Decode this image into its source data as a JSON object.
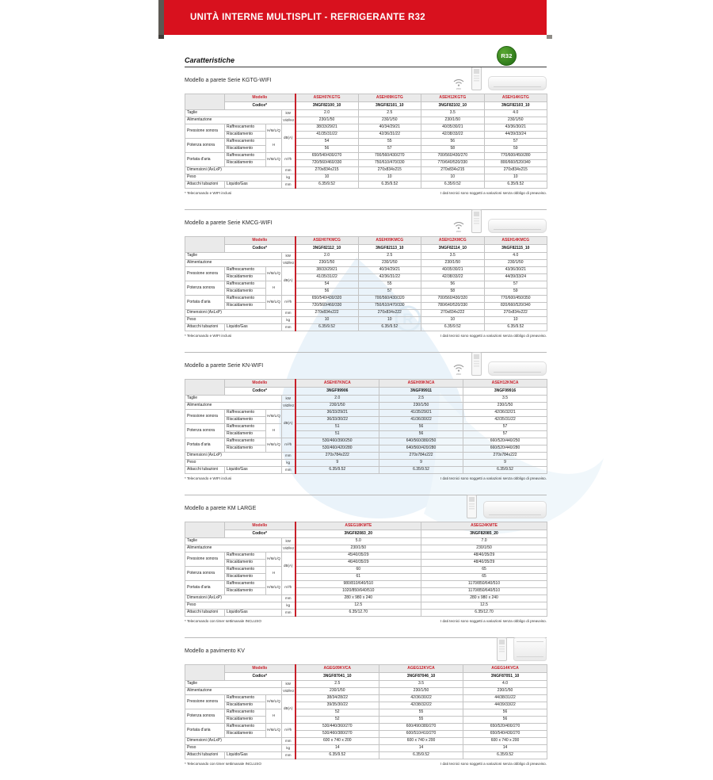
{
  "banner": {
    "title": "UNITÀ INTERNE MULTISPLIT - REFRIGERANTE R32"
  },
  "page": {
    "heading": "Caratteristiche",
    "r32_badge": "R32"
  },
  "labels": {
    "modello": "Modello",
    "codice": "Codice*",
    "taglie": "Taglie",
    "alimentazione": "Alimentazione",
    "pressione": "Pressione sonora",
    "potenza": "Potenza sonora",
    "portata": "Portata d'aria",
    "dimensioni": "Dimensioni (AxLxP)",
    "peso": "Peso",
    "attacchi": "Attacchi tubazioni",
    "raffrescamento": "Raffrescamento",
    "riscaldamento": "Riscaldamento",
    "liquido_gas": "Liquido/Gas",
    "hmlq": "H/M/L/Q",
    "h": "H",
    "unit_kw": "kW",
    "unit_v": "V/Ø/Hz",
    "unit_db": "dB(A)",
    "unit_m3h": "m³/h",
    "unit_mm": "mm",
    "unit_kg": "kg",
    "wifi": "WIFI",
    "disclaimer": "I dati tecnici sono soggetti a variazioni senza obbligo di preavviso."
  },
  "tables": [
    {
      "title": "Modello a parete Serie KGTG-WIFI",
      "icons": [
        "wifi",
        "remote",
        "wall"
      ],
      "models": [
        "ASEH07KGTG",
        "ASEH09KGTG",
        "ASEH12KGTG",
        "ASEH14KGTG"
      ],
      "codes": [
        "3NGF82100_10",
        "3NGF82101_10",
        "3NGF82102_10",
        "3NGF82103_10"
      ],
      "taglie": [
        "2.0",
        "2.5",
        "3.5",
        "4.0"
      ],
      "alimentazione": [
        "230/1/50",
        "230/1/50",
        "230/1/50",
        "230/1/50"
      ],
      "pressione_raffrescamento": [
        "38/33/29/21",
        "40/34/29/21",
        "40/35/30/21",
        "43/36/30/21"
      ],
      "pressione_riscaldamento": [
        "41/35/31/22",
        "42/36/31/22",
        "42/38/33/22",
        "44/39/33/24"
      ],
      "potenza_raffrescamento": [
        "54",
        "55",
        "56",
        "57"
      ],
      "potenza_riscaldamento": [
        "56",
        "57",
        "58",
        "59"
      ],
      "portata_raffrescamento": [
        "650/540/430/270",
        "700/560/430/270",
        "700/560/430/270",
        "770/600/450/280"
      ],
      "portata_riscaldamento": [
        "720/560/460/330",
        "750/610/470/330",
        "770/640/520/330",
        "800/660/520/340"
      ],
      "dimensioni": [
        "270x834x215",
        "270x834x215",
        "270x834x215",
        "270x834x215"
      ],
      "peso": [
        "10",
        "10",
        "10",
        "10"
      ],
      "attacchi": [
        "6.35/9.52",
        "6.35/9.52",
        "6.35/9.52",
        "6.35/9.52"
      ],
      "note_left": "* Telecomando e WIFI inclusi"
    },
    {
      "title": "Modello a parete Serie KMCG-WIFI",
      "icons": [
        "wifi",
        "remote",
        "wall"
      ],
      "models": [
        "ASEH07KMCG",
        "ASEH09KMCG",
        "ASEH12KMCG",
        "ASEH14KMCG"
      ],
      "codes": [
        "3NGF82112_10",
        "3NGF82113_10",
        "3NGF82114_10",
        "3NGF82115_10"
      ],
      "taglie": [
        "2.0",
        "2.5",
        "3.5",
        "4.0"
      ],
      "alimentazione": [
        "230/1/50",
        "230/1/50",
        "230/1/50",
        "230/1/50"
      ],
      "pressione_raffrescamento": [
        "38/33/29/21",
        "40/34/29/21",
        "40/35/30/21",
        "43/36/30/21"
      ],
      "pressione_riscaldamento": [
        "41/35/31/22",
        "42/36/31/22",
        "42/38/33/22",
        "44/39/33/24"
      ],
      "potenza_raffrescamento": [
        "54",
        "55",
        "56",
        "57"
      ],
      "potenza_riscaldamento": [
        "56",
        "57",
        "58",
        "59"
      ],
      "portata_raffrescamento": [
        "650/540/430/320",
        "700/560/430/320",
        "700/560/430/320",
        "770/600/450/350"
      ],
      "portata_riscaldamento": [
        "720/560/460/330",
        "750/610/470/330",
        "780/640/520/330",
        "820/660/520/340"
      ],
      "dimensioni": [
        "270x834x222",
        "270x834x222",
        "270x834x222",
        "270x834x222"
      ],
      "peso": [
        "10",
        "10",
        "10",
        "10"
      ],
      "attacchi": [
        "6.35/9.52",
        "6.35/9.52",
        "6.35/9.52",
        "6.35/9.52"
      ],
      "note_left": "* Telecomando e WIFI inclusi"
    },
    {
      "title": "Modello a parete Serie KN-WIFI",
      "icons": [
        "wifi",
        "remote",
        "wall"
      ],
      "models": [
        "ASEH07KNCA",
        "ASEH09KNCA",
        "ASEH12KNCA"
      ],
      "codes": [
        "3NGF99906",
        "3NGF99911",
        "3NGF99916"
      ],
      "taglie": [
        "2.0",
        "2.5",
        "3.5"
      ],
      "alimentazione": [
        "230/1/50",
        "230/1/50",
        "230/1/50"
      ],
      "pressione_raffrescamento": [
        "36/33/29/21",
        "41/35/29/21",
        "42/36/32/21"
      ],
      "pressione_riscaldamento": [
        "36/33/30/22",
        "41/36/30/22",
        "42/35/31/22"
      ],
      "potenza_raffrescamento": [
        "51",
        "56",
        "57"
      ],
      "potenza_riscaldamento": [
        "51",
        "56",
        "57"
      ],
      "portata_raffrescamento": [
        "530/460/390/250",
        "640/560/380/250",
        "660/520/440/250"
      ],
      "portata_riscaldamento": [
        "530/460/420/280",
        "640/560/420/280",
        "660/520/440/280"
      ],
      "dimensioni": [
        "270x784x222",
        "270x784x222",
        "270x784x222"
      ],
      "peso": [
        "9",
        "9",
        "9"
      ],
      "attacchi": [
        "6.35/9.52",
        "6.35/9.52",
        "6.35/9.52"
      ],
      "note_left": "* Telecomando e WIFI inclusi"
    },
    {
      "title": "Modello a parete KM LARGE",
      "icons": [
        "remote",
        "wall-lg"
      ],
      "models": [
        "ASEG18KMTE",
        "ASEG24KMTE"
      ],
      "codes": [
        "3NGF82083_20",
        "3NGF82085_20"
      ],
      "taglie": [
        "5.0",
        "7.0"
      ],
      "alimentazione": [
        "230/1/50",
        "230/1/50"
      ],
      "pressione_raffrescamento": [
        "45/40/35/29",
        "48/40/35/29"
      ],
      "pressione_riscaldamento": [
        "46/40/35/29",
        "48/40/35/29"
      ],
      "potenza_raffrescamento": [
        "60",
        "65"
      ],
      "potenza_riscaldamento": [
        "61",
        "65"
      ],
      "portata_raffrescamento": [
        "980/810/640/510",
        "1170/850/640/510"
      ],
      "portata_riscaldamento": [
        "1020/850/640/510",
        "1170/850/640/510"
      ],
      "dimensioni": [
        "280 x 980 x 240",
        "280 x 980 x 240"
      ],
      "peso": [
        "12.5",
        "12.5"
      ],
      "attacchi": [
        "6.35/12.70",
        "6.35/12.70"
      ],
      "note_left": "* Telecomando con timer settimanale INCLUSO"
    },
    {
      "title": "Modello a pavimento KV",
      "icons": [
        "remote",
        "floor"
      ],
      "models": [
        "AGEG09KVCA",
        "AGEG12KVCA",
        "AGEG14KVCA"
      ],
      "codes": [
        "3NGF87041_10",
        "3NGF87046_10",
        "3NGF87051_10"
      ],
      "taglie": [
        "2.5",
        "3.5",
        "4.0"
      ],
      "alimentazione": [
        "230/1/50",
        "230/1/50",
        "230/1/50"
      ],
      "pressione_raffrescamento": [
        "38/34/28/22",
        "42/36/30/22",
        "44/38/31/22"
      ],
      "pressione_riscaldamento": [
        "39/35/30/22",
        "42/38/32/22",
        "44/39/33/22"
      ],
      "potenza_raffrescamento": [
        "52",
        "55",
        "56"
      ],
      "potenza_riscaldamento": [
        "52",
        "55",
        "56"
      ],
      "portata_raffrescamento": [
        "530/440/360/270",
        "600/490/380/270",
        "650/520/400/270"
      ],
      "portata_riscaldamento": [
        "530/460/380/270",
        "600/510/410/270",
        "650/540/430/270"
      ],
      "dimensioni": [
        "600 x 740 x 200",
        "600 x 740 x 200",
        "600 x 740 x 200"
      ],
      "peso": [
        "14",
        "14",
        "14"
      ],
      "attacchi": [
        "6.35/9.52",
        "6.35/9.52",
        "6.35/9.52"
      ],
      "note_left": "* Telecomando con timer settimanale INCLUSO"
    }
  ]
}
